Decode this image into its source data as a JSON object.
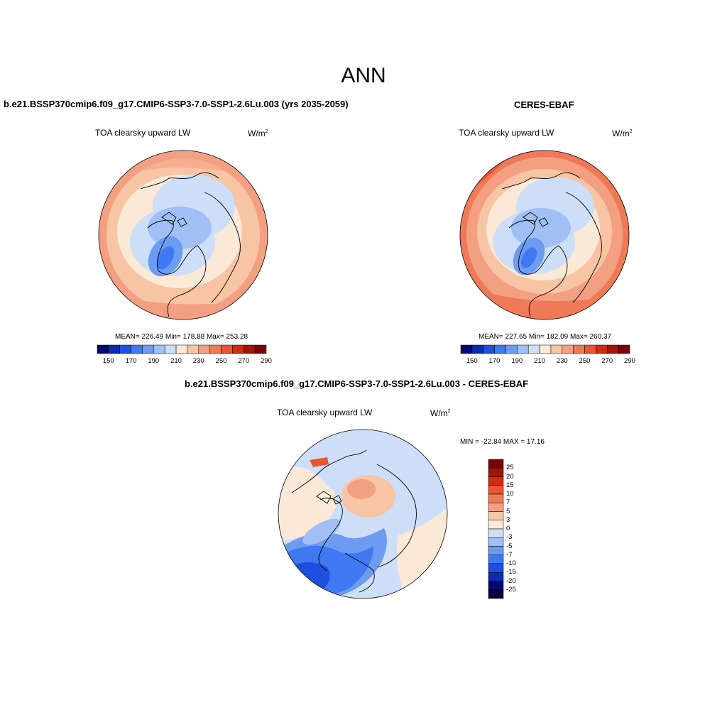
{
  "main_title": "ANN",
  "panels": [
    {
      "title": "b.e21.BSSP370cmip6.f09_g17.CMIP6-SSP3-7.0-SSP1-2.6Lu.003 (yrs 2035-2059)",
      "variable": "TOA clearsky upward LW",
      "units": "W/m",
      "units_sup": "2",
      "stats": "MEAN= 226.49  Min= 178.88  Max= 253.28"
    },
    {
      "title": "CERES-EBAF",
      "variable": "TOA clearsky upward LW",
      "units": "W/m",
      "units_sup": "2",
      "stats": "MEAN= 227.65  Min= 182.09  Max= 260.37"
    },
    {
      "title": "b.e21.BSSP370cmip6.f09_g17.CMIP6-SSP3-7.0-SSP1-2.6Lu.003 - CERES-EBAF",
      "variable": "TOA clearsky upward LW",
      "units": "W/m",
      "units_sup": "2",
      "stats": "MIN = -22.84 MAX =  17.16"
    }
  ],
  "abs_colorbar": {
    "colors": [
      "#08086e",
      "#0a2cb0",
      "#1f4fe0",
      "#3f78f0",
      "#6d9bf2",
      "#9fbff5",
      "#cddff8",
      "#fbe9d8",
      "#f7c4a4",
      "#f3a082",
      "#ee7a58",
      "#e85530",
      "#d02a10",
      "#a31206",
      "#7a0503"
    ],
    "labels": [
      "150",
      "170",
      "190",
      "210",
      "230",
      "250",
      "270",
      "290"
    ]
  },
  "diff_colorbar": {
    "colors": [
      "#7a0503",
      "#a31206",
      "#d02a10",
      "#e85530",
      "#ee7a58",
      "#f3a082",
      "#f7c4a4",
      "#fbe9d8",
      "#cddff8",
      "#9fbff5",
      "#6d9bf2",
      "#3f78f0",
      "#1f4fe0",
      "#0a2cb0",
      "#08086e",
      "#050540"
    ],
    "labels": [
      "25",
      "20",
      "15",
      "10",
      "7",
      "5",
      "3",
      "0",
      "-3",
      "-5",
      "-7",
      "-10",
      "-15",
      "-20",
      "-25"
    ]
  }
}
